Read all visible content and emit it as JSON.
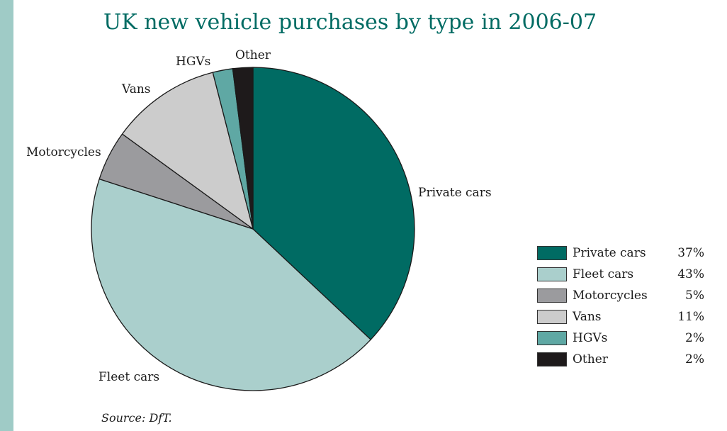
{
  "chart_data": {
    "type": "pie",
    "title": "UK new vehicle purchases by type in 2006-07",
    "source": "Source: DfT.",
    "start_angle_deg": 0,
    "direction": "clockwise",
    "slices": [
      {
        "name": "Private cars",
        "value": 37,
        "label": "37%",
        "color": "#006b63"
      },
      {
        "name": "Fleet cars",
        "value": 43,
        "label": "43%",
        "color": "#aacfcc"
      },
      {
        "name": "Motorcycles",
        "value": 5,
        "label": "5%",
        "color": "#9b9b9e"
      },
      {
        "name": "Vans",
        "value": 11,
        "label": "11%",
        "color": "#cccccc"
      },
      {
        "name": "HGVs",
        "value": 2,
        "label": "2%",
        "color": "#5fa8a4"
      },
      {
        "name": "Other",
        "value": 2,
        "label": "2%",
        "color": "#1e1a1b"
      }
    ],
    "legend_position": "right"
  }
}
